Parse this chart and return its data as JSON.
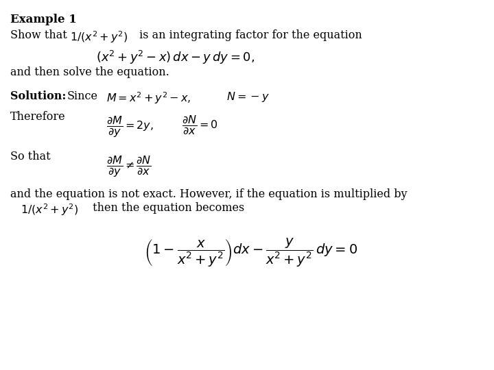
{
  "background_color": "#ffffff",
  "title_bold": "Example 1",
  "show_that_text": "Show that ",
  "show_that_math": "$1/(x^2 + y^2)$",
  "show_that_rest": " is an integrating factor for the equation",
  "eq1": "$(x^2 + y^2 - x)\\,dx - y\\,dy = 0,$",
  "and_then": "and then solve the equation.",
  "sol_bold": "Solution:",
  "sol_since": " Since",
  "sol_M": "$M = x^2 + y^2 - x,$",
  "sol_N": "$N = -y$",
  "therefore": "Therefore",
  "dMdy": "$\\dfrac{\\partial M}{\\partial y} = 2y,$",
  "dNdx": "$\\dfrac{\\partial N}{\\partial x} = 0$",
  "so_that": "So that",
  "not_equal": "$\\dfrac{\\partial M}{\\partial y} \\neq \\dfrac{\\partial N}{\\partial x}$",
  "not_exact": "and the equation is not exact. However, if the equation is multiplied by",
  "multiplied": "$1/(x^2 + y^2)$  then the equation becomes",
  "final_eq": "$\\left(1 - \\dfrac{x}{x^2 + y^2}\\right)dx - \\dfrac{y}{x^2 + y^2}\\,dy = 0$",
  "fs_title": 12,
  "fs_body": 11.5,
  "fs_math": 11.5,
  "fs_eq": 12
}
